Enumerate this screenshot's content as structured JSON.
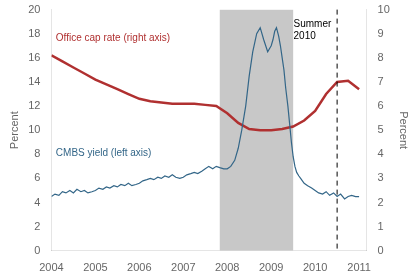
{
  "chart_data": {
    "type": "line",
    "xlim": [
      2004.0,
      2011.17
    ],
    "xticks": [
      2004,
      2005,
      2006,
      2007,
      2008,
      2009,
      2010,
      2011
    ],
    "ylim": [
      0,
      20
    ],
    "yticks": [
      0,
      2,
      4,
      6,
      8,
      10,
      12,
      14,
      16,
      18,
      20
    ],
    "ylabel": "Percent",
    "y2lim": [
      0,
      10
    ],
    "y2ticks": [
      0,
      1,
      2,
      3,
      4,
      5,
      6,
      7,
      8,
      9,
      10
    ],
    "y2label": "Percent",
    "grid": false,
    "series": [
      {
        "color": "#336688",
        "x": [
          2004.0,
          2004.08,
          2004.17,
          2004.25,
          2004.33,
          2004.42,
          2004.5,
          2004.58,
          2004.67,
          2004.75,
          2004.83,
          2004.92,
          2005.0,
          2005.08,
          2005.17,
          2005.25,
          2005.33,
          2005.42,
          2005.5,
          2005.58,
          2005.67,
          2005.75,
          2005.83,
          2005.92,
          2006.0,
          2006.08,
          2006.17,
          2006.25,
          2006.33,
          2006.42,
          2006.5,
          2006.58,
          2006.67,
          2006.75,
          2006.83,
          2006.92,
          2007.0,
          2007.08,
          2007.17,
          2007.25,
          2007.33,
          2007.42,
          2007.5,
          2007.58,
          2007.67,
          2007.75,
          2007.83,
          2007.92,
          2008.0,
          2008.08,
          2008.17,
          2008.25,
          2008.33,
          2008.42,
          2008.5,
          2008.58,
          2008.67,
          2008.75,
          2008.83,
          2008.92,
          2009.0,
          2009.04,
          2009.08,
          2009.12,
          2009.17,
          2009.21,
          2009.25,
          2009.29,
          2009.33,
          2009.38,
          2009.42,
          2009.46,
          2009.5,
          2009.54,
          2009.58,
          2009.63,
          2009.67,
          2009.71,
          2009.75,
          2009.83,
          2009.92,
          2010.0,
          2010.08,
          2010.17,
          2010.25,
          2010.33,
          2010.42,
          2010.5,
          2010.58,
          2010.67,
          2010.75,
          2010.83,
          2010.92,
          2011.0
        ],
        "values": [
          4.5,
          4.7,
          4.6,
          4.9,
          4.8,
          5.0,
          4.8,
          5.1,
          4.9,
          5.0,
          4.8,
          4.9,
          5.0,
          5.2,
          5.1,
          5.3,
          5.2,
          5.4,
          5.3,
          5.5,
          5.4,
          5.6,
          5.4,
          5.5,
          5.6,
          5.8,
          5.9,
          6.0,
          5.9,
          6.1,
          6.0,
          6.2,
          6.1,
          6.3,
          6.1,
          6.0,
          6.1,
          6.3,
          6.4,
          6.5,
          6.4,
          6.6,
          6.8,
          7.0,
          6.8,
          7.0,
          6.9,
          6.8,
          6.8,
          7.0,
          7.5,
          8.5,
          10.0,
          12.0,
          14.5,
          16.5,
          18.0,
          18.5,
          17.5,
          16.5,
          17.0,
          17.5,
          18.2,
          18.5,
          17.8,
          17.0,
          16.0,
          15.0,
          13.5,
          12.0,
          10.5,
          9.0,
          7.8,
          7.0,
          6.5,
          6.2,
          6.0,
          5.8,
          5.6,
          5.4,
          5.2,
          5.0,
          4.8,
          4.7,
          4.9,
          4.6,
          4.8,
          4.5,
          4.7,
          4.3,
          4.5,
          4.6,
          4.5,
          4.5
        ]
      },
      {
        "color": "#b03030",
        "axis": "y2",
        "x": [
          2004.0,
          2004.25,
          2004.5,
          2004.75,
          2005.0,
          2005.25,
          2005.5,
          2005.75,
          2006.0,
          2006.25,
          2006.5,
          2006.75,
          2007.0,
          2007.25,
          2007.5,
          2007.75,
          2008.0,
          2008.25,
          2008.5,
          2008.75,
          2009.0,
          2009.25,
          2009.5,
          2009.75,
          2010.0,
          2010.25,
          2010.5,
          2010.75,
          2011.0
        ],
        "values": [
          8.1,
          7.85,
          7.6,
          7.35,
          7.1,
          6.9,
          6.7,
          6.5,
          6.3,
          6.2,
          6.15,
          6.1,
          6.1,
          6.1,
          6.05,
          6.0,
          5.7,
          5.3,
          5.05,
          5.0,
          5.0,
          5.05,
          5.15,
          5.4,
          5.8,
          6.5,
          7.0,
          7.05,
          6.7
        ]
      }
    ],
    "spans": [
      {
        "x0": 2007.83,
        "x1": 2009.5,
        "color": "#c8c8c8"
      }
    ],
    "vlines": [
      {
        "x": 2010.5,
        "color": "#000000",
        "line_style": "dashed"
      }
    ],
    "annotations": [
      {
        "text": "Summer\n2010",
        "x": 2010.55,
        "y": 9.6,
        "axis": "y2",
        "color": "#000000"
      },
      {
        "text": "Office cap rate (right axis)",
        "x": 2004.1,
        "y": 9.0,
        "axis": "y2",
        "color": "#b03030"
      },
      {
        "text": "CMBS yield (left axis)",
        "x": 2004.1,
        "y": 8.5,
        "color": "#336688"
      }
    ]
  }
}
